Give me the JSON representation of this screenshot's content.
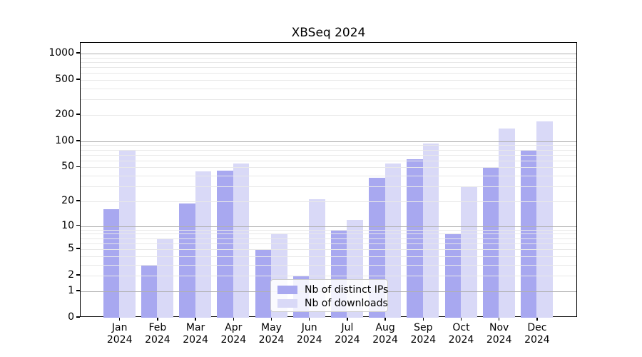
{
  "title": "XBSeq 2024",
  "chart_data": {
    "type": "bar",
    "title": "XBSeq 2024",
    "categories": [
      "Jan",
      "Feb",
      "Mar",
      "Apr",
      "May",
      "Jun",
      "Jul",
      "Aug",
      "Sep",
      "Oct",
      "Nov",
      "Dec"
    ],
    "xtick_year": "2024",
    "series": [
      {
        "name": "Nb of distinct IPs",
        "color": "#a8a8f0",
        "values": [
          16,
          3,
          19,
          46,
          5,
          2,
          9,
          38,
          62,
          8,
          50,
          80
        ]
      },
      {
        "name": "Nb of downloads",
        "color": "#d9d9f7",
        "values": [
          78,
          7,
          45,
          55,
          8,
          21,
          12,
          55,
          95,
          30,
          140,
          170
        ]
      }
    ],
    "yscale": "log1p",
    "ylim": [
      0,
      1337
    ],
    "ytick_values": [
      0,
      1,
      2,
      5,
      10,
      20,
      50,
      100,
      200,
      500,
      1000
    ],
    "ytick_labels": [
      "0",
      "1",
      "2",
      "5",
      "10",
      "20",
      "50",
      "100",
      "200",
      "500",
      "1000"
    ],
    "major_grid_values": [
      1,
      10,
      100,
      1000
    ],
    "minor_grid_values": [
      2,
      3,
      4,
      5,
      6,
      7,
      8,
      9,
      20,
      30,
      40,
      50,
      60,
      70,
      80,
      90,
      200,
      300,
      400,
      500,
      600,
      700,
      800,
      900
    ],
    "grid": true,
    "legend_position": "lower center",
    "colors": {
      "bar_distinct_ips": "#a8a8f0",
      "bar_downloads": "#d9d9f7",
      "major_grid": "#b0b0b0",
      "minor_grid": "#e8e8e8",
      "spine": "#000000",
      "text": "#000000",
      "legend_border": "#cccccc"
    }
  }
}
